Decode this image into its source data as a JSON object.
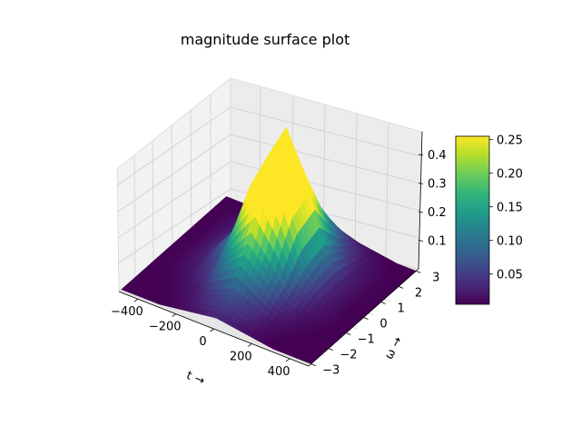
{
  "chart_data": {
    "type": "surface3d",
    "title": "magnitude surface plot",
    "xlabel": "t →",
    "ylabel": "ω →",
    "zlabel": "",
    "xlim": [
      -500,
      500
    ],
    "ylim": [
      -3.14,
      3.14
    ],
    "zlim": [
      0,
      0.48
    ],
    "x_ticks": [
      "−400",
      "−200",
      "0",
      "200",
      "400"
    ],
    "x_tick_values": [
      -400,
      -200,
      0,
      200,
      400
    ],
    "y_ticks": [
      "−3",
      "−2",
      "−1",
      "0",
      "1",
      "2",
      "3"
    ],
    "y_tick_values": [
      -3,
      -2,
      -1,
      0,
      1,
      2,
      3
    ],
    "z_ticks": [
      "0.1",
      "0.2",
      "0.3",
      "0.4"
    ],
    "z_tick_values": [
      0.1,
      0.2,
      0.3,
      0.4
    ],
    "colormap": "viridis",
    "colorbar": {
      "ticks": [
        "0.05",
        "0.10",
        "0.15",
        "0.20",
        "0.25"
      ],
      "tick_values": [
        0.05,
        0.1,
        0.15,
        0.2,
        0.25
      ],
      "range": [
        0.005,
        0.255
      ]
    },
    "surface": {
      "t_values": [
        -500,
        -400,
        -300,
        -200,
        -100,
        0,
        100,
        200,
        300,
        400,
        500
      ],
      "omega_values": [
        -3,
        -2,
        -1,
        0,
        1,
        2,
        3
      ],
      "magnitude": [
        [
          0.0,
          0.0,
          0.0,
          0.01,
          0.02,
          0.03,
          0.02,
          0.01,
          0.0,
          0.0,
          0.0
        ],
        [
          0.0,
          0.0,
          0.01,
          0.02,
          0.05,
          0.08,
          0.05,
          0.02,
          0.01,
          0.0,
          0.0
        ],
        [
          0.0,
          0.01,
          0.02,
          0.05,
          0.14,
          0.22,
          0.14,
          0.05,
          0.02,
          0.01,
          0.0
        ],
        [
          0.0,
          0.01,
          0.03,
          0.1,
          0.3,
          0.44,
          0.3,
          0.1,
          0.03,
          0.01,
          0.0
        ],
        [
          0.0,
          0.01,
          0.03,
          0.12,
          0.34,
          0.48,
          0.34,
          0.12,
          0.03,
          0.01,
          0.0
        ],
        [
          0.0,
          0.01,
          0.02,
          0.06,
          0.16,
          0.24,
          0.16,
          0.06,
          0.02,
          0.01,
          0.0
        ],
        [
          0.0,
          0.0,
          0.01,
          0.02,
          0.04,
          0.06,
          0.04,
          0.02,
          0.01,
          0.0,
          0.0
        ]
      ]
    }
  },
  "viridis_stops": [
    "#440154",
    "#482878",
    "#3e4a89",
    "#31688e",
    "#26828e",
    "#1f9e89",
    "#35b779",
    "#6dcd59",
    "#b4de2c",
    "#fde725"
  ]
}
